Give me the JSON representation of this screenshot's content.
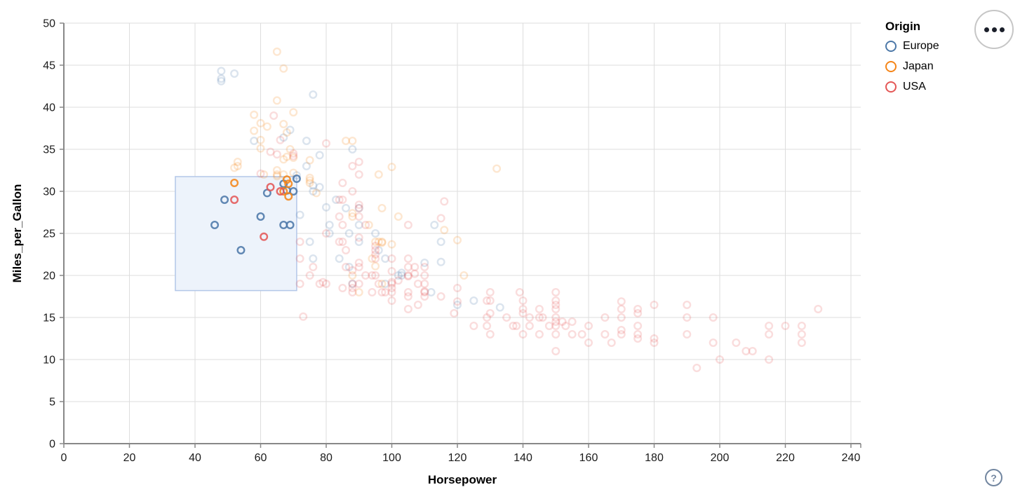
{
  "chart_data": {
    "type": "scatter",
    "title": "",
    "xlabel": "Horsepower",
    "ylabel": "Miles_per_Gallon",
    "xlim": [
      0,
      240
    ],
    "ylim": [
      0,
      50
    ],
    "x_ticks": [
      0,
      20,
      40,
      60,
      80,
      100,
      120,
      140,
      160,
      180,
      200,
      220,
      240
    ],
    "y_ticks": [
      0,
      5,
      10,
      15,
      20,
      25,
      30,
      35,
      40,
      45,
      50
    ],
    "grid": true,
    "legend": {
      "title": "Origin",
      "position": "top-right",
      "entries": [
        {
          "label": "Europe",
          "color": "#4c78a8"
        },
        {
          "label": "Japan",
          "color": "#f58518"
        },
        {
          "label": "USA",
          "color": "#e45756"
        }
      ]
    },
    "brush": {
      "hp_range": [
        34,
        71
      ],
      "mpg_range": [
        18.2,
        31.75
      ],
      "fill": "#edf3fb",
      "stroke": "#b3c7e8"
    },
    "point_style": {
      "radius": 4.8,
      "stroke_width": 2.4,
      "selected_opacity": 0.88,
      "unselected_opacity": 0.2
    },
    "series": [
      {
        "name": "Europe",
        "color": "#4c78a8",
        "points": [
          [
            46,
            26
          ],
          [
            49,
            29
          ],
          [
            54,
            23
          ],
          [
            60,
            27
          ],
          [
            62,
            29.8
          ],
          [
            67,
            26
          ],
          [
            69,
            26
          ],
          [
            67,
            30.9
          ],
          [
            68,
            30.1
          ],
          [
            87,
            25
          ],
          [
            90,
            24
          ],
          [
            95,
            25
          ],
          [
            113,
            26
          ],
          [
            90,
            28
          ],
          [
            70,
            30
          ],
          [
            76,
            30
          ],
          [
            112,
            18
          ],
          [
            76,
            22
          ],
          [
            87,
            21
          ],
          [
            90,
            26
          ],
          [
            75,
            24
          ],
          [
            103,
            20
          ],
          [
            98,
            19
          ],
          [
            115,
            24
          ],
          [
            83,
            29
          ],
          [
            78,
            30.5
          ],
          [
            81,
            26
          ],
          [
            98,
            22
          ],
          [
            86,
            28
          ],
          [
            81,
            25
          ],
          [
            71,
            31.5
          ],
          [
            88,
            19
          ],
          [
            133,
            16.2
          ],
          [
            125,
            17
          ],
          [
            110,
            21.5
          ],
          [
            103,
            20.3
          ],
          [
            102,
            20
          ],
          [
            72,
            27.2
          ],
          [
            115,
            21.6
          ],
          [
            120,
            16.5
          ],
          [
            78,
            34.3
          ],
          [
            69,
            37.3
          ],
          [
            48,
            43.1
          ],
          [
            48,
            44.3
          ],
          [
            48,
            43.4
          ],
          [
            52,
            44
          ],
          [
            67,
            36.4
          ],
          [
            80,
            28.1
          ],
          [
            76,
            30.7
          ],
          [
            74,
            36
          ],
          [
            74,
            33
          ],
          [
            88,
            35
          ],
          [
            58,
            36
          ],
          [
            76,
            41.5
          ],
          [
            71,
            31.9
          ],
          [
            96,
            23
          ],
          [
            84,
            22
          ]
        ]
      },
      {
        "name": "Japan",
        "color": "#f58518",
        "points": [
          [
            52,
            31
          ],
          [
            68,
            31.4
          ],
          [
            68.5,
            30.9
          ],
          [
            68.5,
            29.4
          ],
          [
            67,
            30
          ],
          [
            95,
            24
          ],
          [
            88,
            27
          ],
          [
            88,
            27.4
          ],
          [
            97,
            28
          ],
          [
            65,
            32
          ],
          [
            69,
            35
          ],
          [
            102,
            27
          ],
          [
            97,
            19
          ],
          [
            88,
            20
          ],
          [
            94,
            22
          ],
          [
            90,
            18
          ],
          [
            122,
            20
          ],
          [
            65,
            32.5
          ],
          [
            75,
            31
          ],
          [
            53,
            33
          ],
          [
            93,
            26
          ],
          [
            61,
            32
          ],
          [
            97,
            24
          ],
          [
            96,
            24
          ],
          [
            53,
            33.5
          ],
          [
            60,
            36.1
          ],
          [
            60,
            35.1
          ],
          [
            75,
            33.7
          ],
          [
            70,
            39.4
          ],
          [
            65,
            40.8
          ],
          [
            65,
            31.8
          ],
          [
            52,
            32.8
          ],
          [
            65,
            46.6
          ],
          [
            58,
            39.1
          ],
          [
            67,
            44.6
          ],
          [
            58,
            37.2
          ],
          [
            62,
            37.7
          ],
          [
            75,
            31.6
          ],
          [
            75,
            31.3
          ],
          [
            60,
            38.1
          ],
          [
            97,
            23.9
          ],
          [
            95,
            21.1
          ],
          [
            100,
            23.7
          ],
          [
            132,
            32.7
          ],
          [
            116,
            25.4
          ],
          [
            120,
            24.2
          ],
          [
            67,
            33.8
          ],
          [
            70,
            32.2
          ],
          [
            70,
            34
          ],
          [
            88,
            36
          ],
          [
            86,
            36
          ],
          [
            67,
            38
          ],
          [
            67,
            32
          ],
          [
            96,
            32
          ],
          [
            77,
            29.8
          ],
          [
            68,
            34.1
          ],
          [
            68,
            37
          ],
          [
            100,
            32.9
          ]
        ]
      },
      {
        "name": "USA",
        "color": "#e45756",
        "points": [
          [
            52,
            29
          ],
          [
            61,
            24.6
          ],
          [
            63,
            30.5
          ],
          [
            66,
            30
          ],
          [
            130,
            18
          ],
          [
            165,
            15
          ],
          [
            150,
            18
          ],
          [
            150,
            16
          ],
          [
            140,
            17
          ],
          [
            198,
            15
          ],
          [
            220,
            14
          ],
          [
            215,
            14
          ],
          [
            225,
            14
          ],
          [
            190,
            15
          ],
          [
            170,
            15
          ],
          [
            160,
            14
          ],
          [
            150,
            15
          ],
          [
            225,
            13
          ],
          [
            95,
            22
          ],
          [
            95,
            23
          ],
          [
            97,
            18
          ],
          [
            85,
            26
          ],
          [
            88,
            18
          ],
          [
            100,
            19
          ],
          [
            105,
            16
          ],
          [
            100,
            17
          ],
          [
            88,
            19
          ],
          [
            100,
            18
          ],
          [
            165,
            13
          ],
          [
            175,
            14
          ],
          [
            153,
            14
          ],
          [
            150,
            14
          ],
          [
            180,
            12
          ],
          [
            170,
            13
          ],
          [
            175,
            13
          ],
          [
            110,
            18
          ],
          [
            72,
            22
          ],
          [
            86,
            23
          ],
          [
            90,
            28
          ],
          [
            76,
            21
          ],
          [
            90,
            21
          ],
          [
            80,
            25
          ],
          [
            86,
            21
          ],
          [
            208,
            11
          ],
          [
            155,
            13
          ],
          [
            160,
            12
          ],
          [
            190,
            13
          ],
          [
            150,
            17
          ],
          [
            145,
            13
          ],
          [
            137,
            14
          ],
          [
            198,
            12
          ],
          [
            150,
            13
          ],
          [
            158,
            13
          ],
          [
            215,
            13
          ],
          [
            225,
            12
          ],
          [
            175,
            12.5
          ],
          [
            105,
            18
          ],
          [
            100,
            18.5
          ],
          [
            88,
            18.5
          ],
          [
            95,
            23.5
          ],
          [
            150,
            11
          ],
          [
            167,
            12
          ],
          [
            170,
            13.5
          ],
          [
            180,
            12.5
          ],
          [
            94,
            20
          ],
          [
            90,
            21.5
          ],
          [
            85,
            24
          ],
          [
            107,
            21
          ],
          [
            145,
            15
          ],
          [
            230,
            16
          ],
          [
            110,
            21
          ],
          [
            105,
            22
          ],
          [
            72,
            24
          ],
          [
            100,
            22
          ],
          [
            84,
            27
          ],
          [
            84,
            24
          ],
          [
            92,
            26
          ],
          [
            110,
            20
          ],
          [
            139,
            18
          ],
          [
            129,
            17
          ],
          [
            140,
            16
          ],
          [
            95,
            22.5
          ],
          [
            129,
            15
          ],
          [
            138,
            14
          ],
          [
            135,
            15
          ],
          [
            155,
            14.5
          ],
          [
            142,
            14
          ],
          [
            125,
            14
          ],
          [
            150,
            14.5
          ],
          [
            60,
            32.1
          ],
          [
            70,
            34.2
          ],
          [
            70,
            34.5
          ],
          [
            64,
            39
          ],
          [
            65,
            34.4
          ],
          [
            66,
            36.1
          ],
          [
            80,
            35.7
          ],
          [
            63,
            34.7
          ],
          [
            90,
            27
          ],
          [
            90,
            24.5
          ],
          [
            110,
            19
          ],
          [
            115,
            17.5
          ],
          [
            110,
            18.1
          ],
          [
            120,
            18.5
          ],
          [
            105,
            20
          ],
          [
            108,
            19
          ],
          [
            130,
            17
          ],
          [
            130,
            13
          ],
          [
            140,
            13
          ],
          [
            142,
            15
          ],
          [
            148,
            14
          ],
          [
            129,
            14
          ],
          [
            200,
            10
          ],
          [
            210,
            11
          ],
          [
            193,
            9
          ],
          [
            215,
            10
          ],
          [
            205,
            12
          ],
          [
            175,
            15.5
          ],
          [
            170,
            16
          ],
          [
            175,
            16
          ],
          [
            180,
            16.5
          ],
          [
            190,
            16.5
          ],
          [
            170,
            16.9
          ],
          [
            140,
            15.5
          ],
          [
            150,
            16.5
          ],
          [
            130,
            15.5
          ],
          [
            145,
            16
          ],
          [
            146,
            15
          ],
          [
            152,
            14.5
          ],
          [
            116,
            28.8
          ],
          [
            115,
            26.8
          ],
          [
            90,
            28.4
          ],
          [
            90,
            33.5
          ],
          [
            105,
            26
          ],
          [
            85,
            29
          ],
          [
            85,
            31
          ],
          [
            88,
            30
          ],
          [
            90,
            32
          ],
          [
            88,
            33
          ],
          [
            105,
            21
          ],
          [
            100,
            19.2
          ],
          [
            105,
            19.9
          ],
          [
            110,
            17.5
          ],
          [
            120,
            16.9
          ],
          [
            119,
            15.5
          ],
          [
            108,
            16.5
          ],
          [
            98,
            18
          ],
          [
            95,
            20
          ],
          [
            102,
            19.4
          ],
          [
            100,
            20.5
          ],
          [
            88,
            20.6
          ],
          [
            92,
            20
          ],
          [
            107,
            20.2
          ],
          [
            105,
            17.5
          ],
          [
            94,
            18
          ],
          [
            96,
            19
          ],
          [
            90,
            19
          ],
          [
            85,
            18.5
          ],
          [
            80,
            19
          ],
          [
            79,
            19.2
          ],
          [
            75,
            20
          ],
          [
            78,
            19
          ],
          [
            72,
            19
          ],
          [
            73,
            15.1
          ],
          [
            84,
            29
          ]
        ]
      }
    ]
  },
  "controls": {
    "menu_button": "actions-menu",
    "help_glyph": "?"
  }
}
